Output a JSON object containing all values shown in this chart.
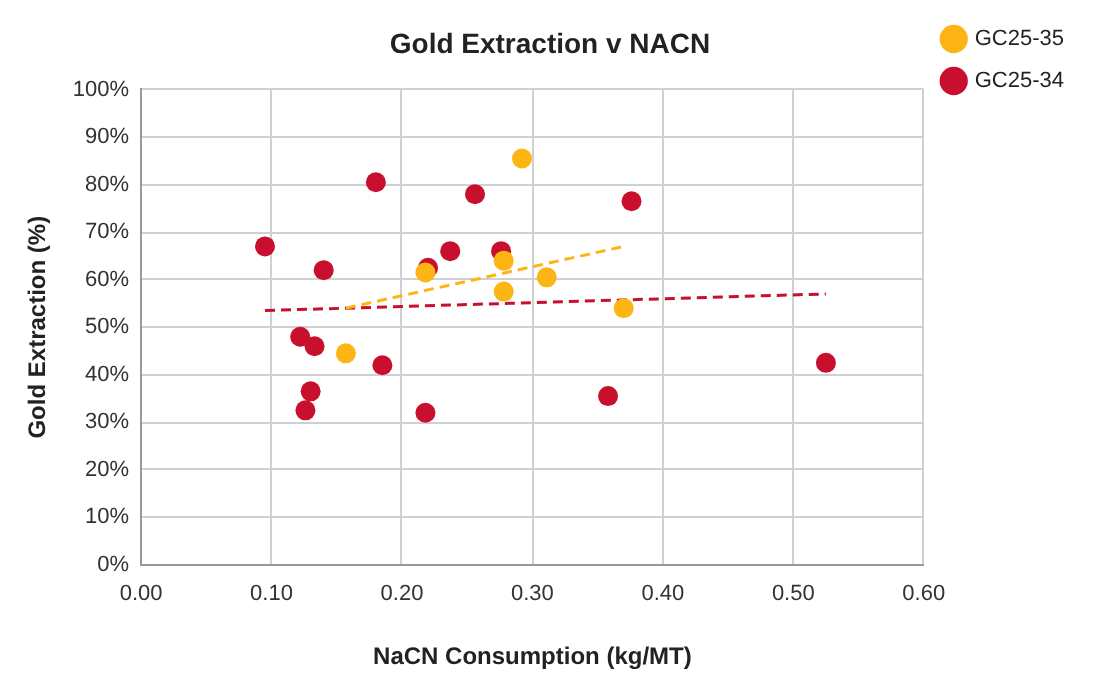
{
  "chart_data": {
    "type": "scatter",
    "title": "Gold Extraction v NACN",
    "xlabel": "NaCN Consumption (kg/MT)",
    "ylabel": "Gold Extraction (%)",
    "xlim": [
      0,
      0.6
    ],
    "xticks": [
      {
        "value": 0,
        "label": "0.00"
      },
      {
        "value": 0.1,
        "label": "0.10"
      },
      {
        "value": 0.2,
        "label": "0.20"
      },
      {
        "value": 0.3,
        "label": "0.30"
      },
      {
        "value": 0.4,
        "label": "0.40"
      },
      {
        "value": 0.5,
        "label": "0.50"
      },
      {
        "value": 0.6,
        "label": "0.60"
      }
    ],
    "ylim": [
      0,
      100
    ],
    "yticks": [
      {
        "value": 0,
        "label": "0%"
      },
      {
        "value": 10,
        "label": "10%"
      },
      {
        "value": 20,
        "label": "20%"
      },
      {
        "value": 30,
        "label": "30%"
      },
      {
        "value": 40,
        "label": "40%"
      },
      {
        "value": 50,
        "label": "50%"
      },
      {
        "value": 60,
        "label": "60%"
      },
      {
        "value": 70,
        "label": "70%"
      },
      {
        "value": 80,
        "label": "80%"
      },
      {
        "value": 90,
        "label": "90%"
      },
      {
        "value": 100,
        "label": "100%"
      }
    ],
    "grid": true,
    "legend": "top right",
    "marker": "circle",
    "series": [
      {
        "name": "GC25-35",
        "color": "#fdb515",
        "x": [
          0.157,
          0.218,
          0.278,
          0.278,
          0.292,
          0.311,
          0.37
        ],
        "values": [
          44.5,
          61.5,
          64,
          57.5,
          85.5,
          60.5,
          54
        ]
      },
      {
        "name": "GC25-34",
        "color": "#c8102e",
        "x": [
          0.095,
          0.14,
          0.18,
          0.122,
          0.133,
          0.13,
          0.126,
          0.185,
          0.22,
          0.218,
          0.237,
          0.256,
          0.276,
          0.358,
          0.376,
          0.525
        ],
        "values": [
          67,
          62,
          80.5,
          48,
          46,
          36.5,
          32.5,
          42,
          62.5,
          32,
          66,
          78,
          66,
          35.5,
          76.5,
          42.5
        ]
      },
      {
        "type": "line",
        "color": "#fdb515",
        "line_style": "dashed",
        "marker": "none",
        "x": [
          0.157,
          0.37
        ],
        "values": [
          54,
          67
        ]
      },
      {
        "type": "line",
        "color": "#c8102e",
        "line_style": "dashed",
        "marker": "none",
        "x": [
          0.095,
          0.525
        ],
        "values": [
          53.5,
          57
        ]
      }
    ]
  }
}
